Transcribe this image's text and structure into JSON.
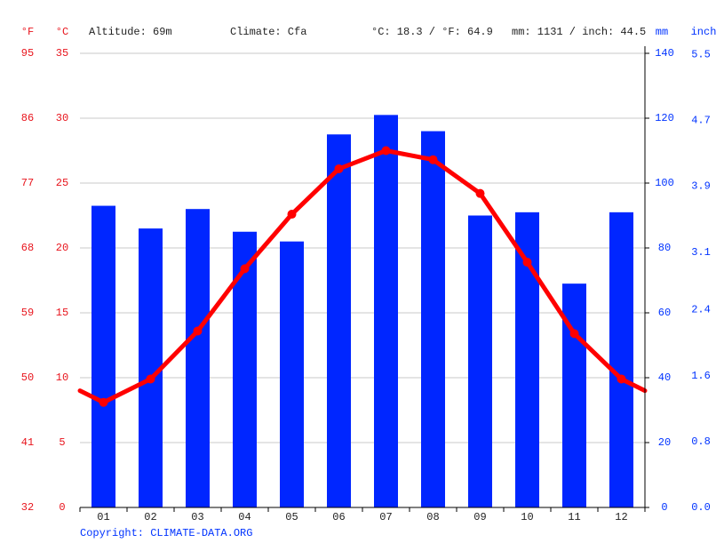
{
  "chart_data": {
    "type": "bar",
    "f_unit": "°F",
    "y_unit": "°C",
    "y2_unit": "mm",
    "inch_unit": "inch",
    "altitude": "Altitude: 69m",
    "climate": "Climate: Cfa",
    "temp_avg": "°C: 18.3 / °F: 64.9",
    "precip_total": "mm: 1131 / inch: 44.5",
    "categories": [
      "01",
      "02",
      "03",
      "04",
      "05",
      "06",
      "07",
      "08",
      "09",
      "10",
      "11",
      "12"
    ],
    "series": [
      {
        "type": "bar",
        "axis": "y2",
        "color": "#0026ff",
        "values": [
          93,
          86,
          92,
          85,
          82,
          115,
          121,
          116,
          90,
          91,
          69,
          91
        ]
      },
      {
        "type": "line",
        "axis": "y",
        "color": "#ff0000",
        "values": [
          8.1,
          9.9,
          13.6,
          18.4,
          22.6,
          26.1,
          27.5,
          26.8,
          24.2,
          18.9,
          13.4,
          9.9
        ]
      }
    ],
    "ylim": [
      0,
      35
    ],
    "yticks": [
      0,
      5,
      10,
      15,
      20,
      25,
      30,
      35
    ],
    "flim": [
      32,
      95
    ],
    "fticks": [
      32,
      41,
      50,
      59,
      68,
      77,
      86,
      95
    ],
    "y2lim": [
      0,
      140
    ],
    "y2ticks": [
      0,
      20,
      40,
      60,
      80,
      100,
      120,
      140
    ],
    "inchlim": [
      0,
      5.512
    ],
    "inchticks": [
      {
        "value": 0,
        "label": "0.0"
      },
      0.8,
      1.6,
      2.4,
      3.1,
      3.9,
      4.7,
      5.5
    ],
    "grid": true,
    "copyright": "Copyright: CLIMATE-DATA.ORG"
  }
}
